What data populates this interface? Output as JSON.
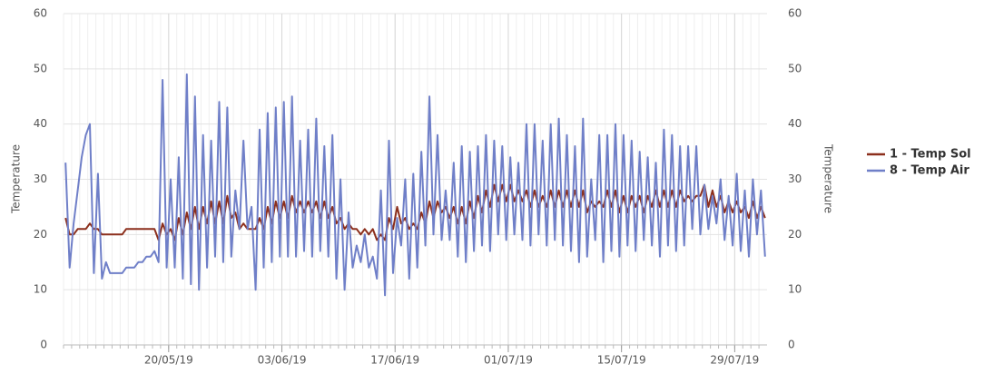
{
  "chart_data": {
    "type": "line",
    "ylabel": "Temperature",
    "y2label": "Temperature",
    "x": [
      "07/05/19",
      "08/05/19",
      "09/05/19",
      "10/05/19",
      "11/05/19",
      "12/05/19",
      "13/05/19",
      "14/05/19",
      "15/05/19",
      "16/05/19",
      "17/05/19",
      "18/05/19",
      "19/05/19",
      "20/05/19",
      "21/05/19",
      "22/05/19",
      "23/05/19",
      "24/05/19",
      "25/05/19",
      "26/05/19",
      "27/05/19",
      "28/05/19",
      "29/05/19",
      "30/05/19",
      "31/05/19",
      "01/06/19",
      "02/06/19",
      "03/06/19",
      "04/06/19",
      "05/06/19",
      "06/06/19",
      "07/06/19",
      "08/06/19",
      "09/06/19",
      "10/06/19",
      "11/06/19",
      "12/06/19",
      "13/06/19",
      "14/06/19",
      "15/06/19",
      "16/06/19",
      "17/06/19",
      "18/06/19",
      "19/06/19",
      "20/06/19",
      "21/06/19",
      "22/06/19",
      "23/06/19",
      "24/06/19",
      "25/06/19",
      "26/06/19",
      "27/06/19",
      "28/06/19",
      "29/06/19",
      "30/06/19",
      "01/07/19",
      "02/07/19",
      "03/07/19",
      "04/07/19",
      "05/07/19",
      "06/07/19",
      "07/07/19",
      "08/07/19",
      "09/07/19",
      "10/07/19",
      "11/07/19",
      "12/07/19",
      "13/07/19",
      "14/07/19",
      "15/07/19",
      "16/07/19",
      "17/07/19",
      "18/07/19",
      "19/07/19",
      "20/07/19",
      "21/07/19",
      "22/07/19",
      "23/07/19",
      "24/07/19",
      "25/07/19",
      "26/07/19",
      "27/07/19",
      "28/07/19",
      "29/07/19",
      "30/07/19",
      "31/07/19",
      "01/08/19"
    ],
    "series": [
      {
        "name": "1 - Temp Sol",
        "color": "#8c2f1c",
        "values": [
          [
            23,
            20
          ],
          [
            20,
            21
          ],
          [
            21,
            21
          ],
          [
            22,
            21
          ],
          [
            21,
            20
          ],
          [
            20,
            20
          ],
          [
            20,
            20
          ],
          [
            20,
            21
          ],
          [
            21,
            21
          ],
          [
            21,
            21
          ],
          [
            21,
            21
          ],
          [
            21,
            19
          ],
          [
            22,
            20
          ],
          [
            21,
            19
          ],
          [
            23,
            20
          ],
          [
            24,
            21
          ],
          [
            25,
            21
          ],
          [
            25,
            22
          ],
          [
            26,
            22
          ],
          [
            26,
            22
          ],
          [
            27,
            23
          ],
          [
            24,
            21
          ],
          [
            22,
            21
          ],
          [
            21,
            21
          ],
          [
            23,
            21
          ],
          [
            25,
            22
          ],
          [
            26,
            23
          ],
          [
            26,
            23
          ],
          [
            27,
            24
          ],
          [
            26,
            24
          ],
          [
            26,
            24
          ],
          [
            26,
            23
          ],
          [
            26,
            23
          ],
          [
            25,
            22
          ],
          [
            23,
            21
          ],
          [
            22,
            21
          ],
          [
            21,
            20
          ],
          [
            21,
            20
          ],
          [
            21,
            19
          ],
          [
            20,
            19
          ],
          [
            23,
            21
          ],
          [
            25,
            22
          ],
          [
            23,
            21
          ],
          [
            22,
            21
          ],
          [
            24,
            22
          ],
          [
            26,
            23
          ],
          [
            26,
            24
          ],
          [
            25,
            23
          ],
          [
            25,
            22
          ],
          [
            25,
            22
          ],
          [
            26,
            23
          ],
          [
            27,
            24
          ],
          [
            28,
            25
          ],
          [
            29,
            26
          ],
          [
            29,
            26
          ],
          [
            29,
            26
          ],
          [
            28,
            26
          ],
          [
            28,
            25
          ],
          [
            28,
            25
          ],
          [
            27,
            25
          ],
          [
            28,
            25
          ],
          [
            28,
            25
          ],
          [
            28,
            25
          ],
          [
            28,
            25
          ],
          [
            28,
            24
          ],
          [
            26,
            25
          ],
          [
            26,
            25
          ],
          [
            28,
            25
          ],
          [
            28,
            24
          ],
          [
            27,
            24
          ],
          [
            27,
            25
          ],
          [
            27,
            24
          ],
          [
            27,
            25
          ],
          [
            28,
            25
          ],
          [
            28,
            25
          ],
          [
            28,
            25
          ],
          [
            28,
            26
          ],
          [
            27,
            26
          ],
          [
            27,
            27
          ],
          [
            29,
            25
          ],
          [
            28,
            25
          ],
          [
            27,
            24
          ],
          [
            26,
            24
          ],
          [
            26,
            24
          ],
          [
            25,
            23
          ],
          [
            26,
            23
          ],
          [
            25,
            23
          ]
        ]
      },
      {
        "name": "8 - Temp Air",
        "color": "#6f7fc8",
        "values": [
          [
            33,
            14
          ],
          [
            22,
            28
          ],
          [
            34,
            38
          ],
          [
            40,
            13
          ],
          [
            31,
            12
          ],
          [
            15,
            13
          ],
          [
            13,
            13
          ],
          [
            13,
            14
          ],
          [
            14,
            14
          ],
          [
            15,
            15
          ],
          [
            16,
            16
          ],
          [
            17,
            15
          ],
          [
            48,
            14
          ],
          [
            30,
            14
          ],
          [
            34,
            12
          ],
          [
            49,
            11
          ],
          [
            45,
            10
          ],
          [
            38,
            14
          ],
          [
            37,
            16
          ],
          [
            44,
            15
          ],
          [
            43,
            16
          ],
          [
            28,
            21
          ],
          [
            37,
            21
          ],
          [
            25,
            10
          ],
          [
            39,
            14
          ],
          [
            42,
            15
          ],
          [
            43,
            16
          ],
          [
            44,
            16
          ],
          [
            45,
            16
          ],
          [
            37,
            17
          ],
          [
            39,
            16
          ],
          [
            41,
            17
          ],
          [
            36,
            16
          ],
          [
            38,
            12
          ],
          [
            30,
            10
          ],
          [
            24,
            14
          ],
          [
            18,
            15
          ],
          [
            20,
            14
          ],
          [
            16,
            12
          ],
          [
            28,
            9
          ],
          [
            37,
            13
          ],
          [
            23,
            18
          ],
          [
            30,
            12
          ],
          [
            31,
            14
          ],
          [
            35,
            18
          ],
          [
            45,
            20
          ],
          [
            38,
            19
          ],
          [
            28,
            19
          ],
          [
            33,
            16
          ],
          [
            36,
            15
          ],
          [
            35,
            17
          ],
          [
            36,
            18
          ],
          [
            38,
            17
          ],
          [
            37,
            20
          ],
          [
            36,
            19
          ],
          [
            34,
            20
          ],
          [
            33,
            19
          ],
          [
            40,
            18
          ],
          [
            40,
            20
          ],
          [
            37,
            18
          ],
          [
            40,
            19
          ],
          [
            41,
            18
          ],
          [
            38,
            17
          ],
          [
            36,
            15
          ],
          [
            41,
            16
          ],
          [
            30,
            19
          ],
          [
            38,
            15
          ],
          [
            38,
            17
          ],
          [
            40,
            16
          ],
          [
            38,
            18
          ],
          [
            37,
            17
          ],
          [
            35,
            19
          ],
          [
            34,
            18
          ],
          [
            33,
            16
          ],
          [
            39,
            18
          ],
          [
            38,
            17
          ],
          [
            36,
            18
          ],
          [
            36,
            21
          ],
          [
            36,
            20
          ],
          [
            29,
            21
          ],
          [
            27,
            22
          ],
          [
            30,
            19
          ],
          [
            27,
            18
          ],
          [
            31,
            17
          ],
          [
            28,
            16
          ],
          [
            30,
            20
          ],
          [
            28,
            16
          ]
        ]
      }
    ],
    "xlim": [
      "07/05/19",
      "02/08/19"
    ],
    "xticks": [
      "20/05/19",
      "03/06/19",
      "17/06/19",
      "01/07/19",
      "15/07/19",
      "29/07/19"
    ],
    "ylim": [
      0,
      60
    ],
    "yticks": [
      0,
      10,
      20,
      30,
      40,
      50,
      60
    ],
    "y2lim": [
      0,
      60
    ],
    "y2ticks": [
      0,
      10,
      20,
      30,
      40,
      50,
      60
    ],
    "grid": true,
    "legend": "right"
  }
}
